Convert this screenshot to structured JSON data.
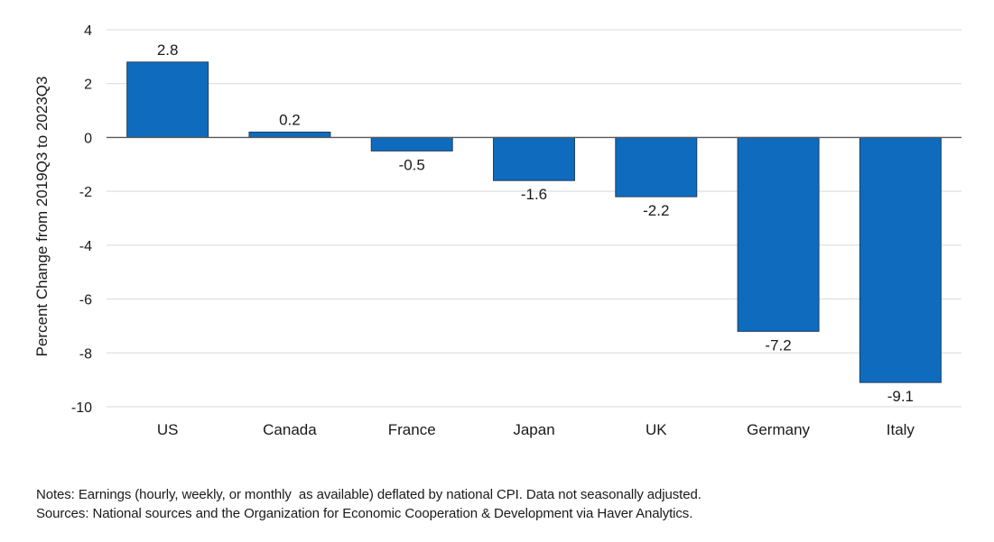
{
  "chart_data": {
    "type": "bar",
    "categories": [
      "US",
      "Canada",
      "France",
      "Japan",
      "UK",
      "Germany",
      "Italy"
    ],
    "values": [
      2.8,
      0.2,
      -0.5,
      -1.6,
      -2.2,
      -7.2,
      -9.1
    ],
    "data_labels": [
      "2.8",
      "0.2",
      "-0.5",
      "-1.6",
      "-2.2",
      "-7.2",
      "-9.1"
    ],
    "title": "",
    "xlabel": "",
    "ylabel": "Percent Change from 2019Q3 to 2023Q3",
    "ylim": [
      -10,
      4
    ],
    "yticks": [
      4,
      2,
      0,
      -2,
      -4,
      -6,
      -8,
      -10
    ],
    "ytick_labels": [
      "4",
      "2",
      "0",
      "-2",
      "-4",
      "-6",
      "-8",
      "-10"
    ],
    "grid": true,
    "legend": "none"
  },
  "colors": {
    "bar_fill": "#0f6bbd",
    "bar_stroke": "#1d3f66",
    "grid": "#d9d9d9",
    "zero_line": "#595959"
  },
  "notes": {
    "notes_text": "Notes: Earnings (hourly, weekly, or monthly  as available) deflated by national CPI. Data not seasonally adjusted.",
    "sources_text": "Sources: National sources and the Organization for Economic Cooperation & Development via Haver Analytics."
  }
}
